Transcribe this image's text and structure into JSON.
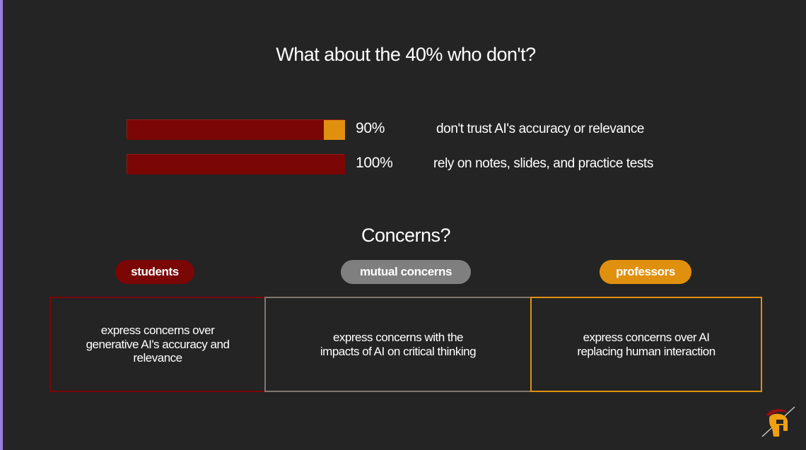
{
  "title": "What about the 40% who don't?",
  "bars": [
    {
      "percent_label": "90%",
      "value": 0.9,
      "description": "don't trust AI's accuracy or relevance"
    },
    {
      "percent_label": "100%",
      "value": 1.0,
      "description": "rely on notes, slides, and practice tests"
    }
  ],
  "subtitle": "Concerns?",
  "groups": [
    {
      "label": "students",
      "text": "express concerns over generative AI's accuracy and relevance"
    },
    {
      "label": "mutual concerns",
      "text": "express concerns with the impacts of AI on critical thinking"
    },
    {
      "label": "professors",
      "text": "express concerns over AI replacing human interaction"
    }
  ],
  "colors": {
    "background": "#242424",
    "students": "#7a0606",
    "mutual": "#7f7f7f",
    "professors": "#e0900f",
    "bar_fill": "#7a0606",
    "bar_accent": "#e0900f"
  },
  "logo_icon": "trojan-helmet-icon"
}
